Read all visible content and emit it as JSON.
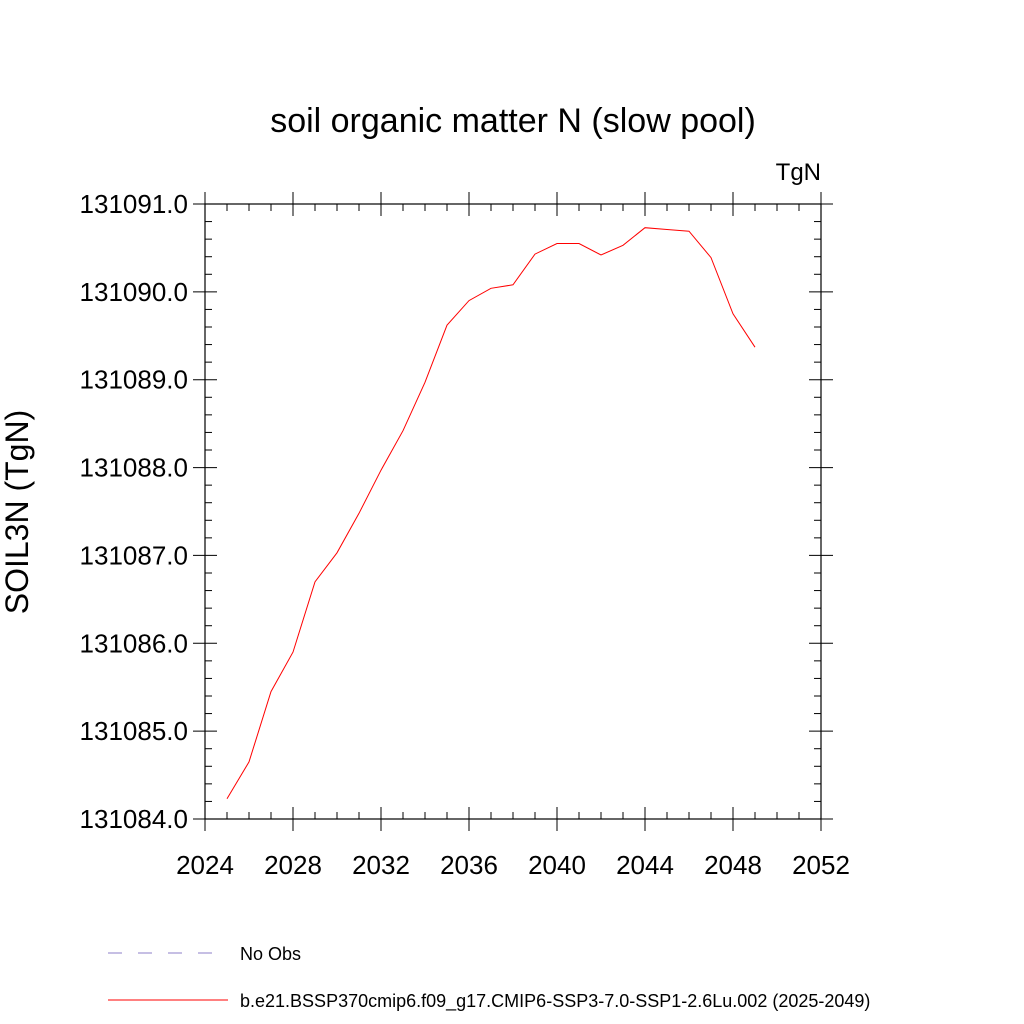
{
  "chart_data": {
    "type": "line",
    "title": "soil organic matter N (slow pool)",
    "units": "TgN",
    "ylabel": "SOIL3N  (TgN)",
    "xlabel": "",
    "xlim": [
      2024,
      2052
    ],
    "ylim": [
      131084.0,
      131091.0
    ],
    "x_major_ticks": [
      2024,
      2028,
      2032,
      2036,
      2040,
      2044,
      2048,
      2052
    ],
    "x_tick_labels": [
      "2024",
      "2028",
      "2032",
      "2036",
      "2040",
      "2044",
      "2048",
      "2052"
    ],
    "x_minor_step": 1,
    "y_major_ticks": [
      131084.0,
      131085.0,
      131086.0,
      131087.0,
      131088.0,
      131089.0,
      131090.0,
      131091.0
    ],
    "y_tick_labels": [
      "131084.0",
      "131085.0",
      "131086.0",
      "131087.0",
      "131088.0",
      "131089.0",
      "131090.0",
      "131091.0"
    ],
    "y_minor_step": 0.2,
    "grid": false,
    "legend_position": "bottom",
    "series": [
      {
        "name": "b.e21.BSSP370cmip6.f09_g17.CMIP6-SSP3-7.0-SSP1-2.6Lu.002 (2025-2049)",
        "color": "#ff0000",
        "dash": "solid",
        "x": [
          2025,
          2026,
          2027,
          2028,
          2029,
          2030,
          2031,
          2032,
          2033,
          2034,
          2035,
          2036,
          2037,
          2038,
          2039,
          2040,
          2041,
          2042,
          2043,
          2044,
          2045,
          2046,
          2047,
          2048,
          2049
        ],
        "y": [
          131084.23,
          131084.65,
          131085.45,
          131085.9,
          131086.7,
          131087.03,
          131087.48,
          131087.97,
          131088.42,
          131088.97,
          131089.62,
          131089.9,
          131090.04,
          131090.08,
          131090.43,
          131090.55,
          131090.55,
          131090.42,
          131090.53,
          131090.73,
          131090.71,
          131090.69,
          131090.39,
          131089.75,
          131089.37
        ]
      },
      {
        "name": "No Obs",
        "color": "#8c7fc8",
        "dash": "dashed",
        "x": [],
        "y": []
      }
    ]
  },
  "legend": {
    "items": [
      {
        "label": "No Obs",
        "color": "#8c7fc8",
        "dash": "dashed"
      },
      {
        "label": "b.e21.BSSP370cmip6.f09_g17.CMIP6-SSP3-7.0-SSP1-2.6Lu.002 (2025-2049)",
        "color": "#ff0000",
        "dash": "solid"
      }
    ]
  }
}
